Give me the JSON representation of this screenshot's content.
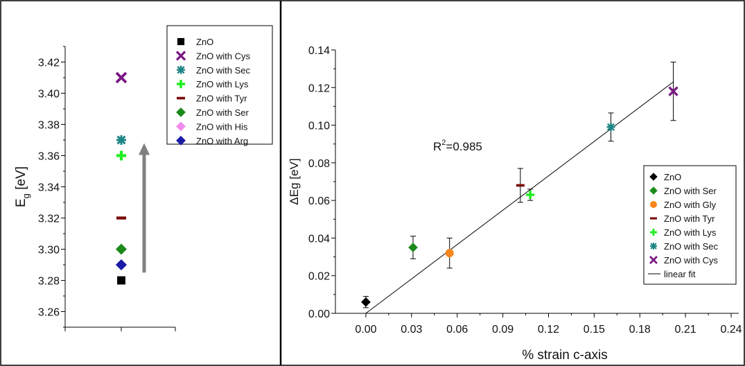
{
  "chart_data": [
    {
      "type": "scatter",
      "ylabel_main": "E",
      "ylabel_sub": "g",
      "ylabel_unit": "[eV]",
      "ylim": [
        3.25,
        3.43
      ],
      "yticks": [
        3.26,
        3.28,
        3.3,
        3.32,
        3.34,
        3.36,
        3.38,
        3.4,
        3.42
      ],
      "ytick_labels": [
        "3.26",
        "3.28",
        "3.30",
        "3.32",
        "3.34",
        "3.36",
        "3.38",
        "3.40",
        "3.42"
      ],
      "arrow": {
        "from": 3.285,
        "to": 3.368,
        "color": "#808080"
      },
      "legend_position": "top-right",
      "series": [
        {
          "name": "ZnO",
          "marker": "square",
          "color": "#000000",
          "y": 3.28
        },
        {
          "name": "ZnO with Cys",
          "marker": "x",
          "color": "#7b1a84",
          "y": 3.41
        },
        {
          "name": "ZnO with Sec",
          "marker": "asterisk",
          "color": "#1f8585",
          "y": 3.37
        },
        {
          "name": "ZnO with Lys",
          "marker": "plus",
          "color": "#22ee22",
          "y": 3.36
        },
        {
          "name": "ZnO with Tyr",
          "marker": "dash",
          "color": "#7d0a0a",
          "y": 3.32
        },
        {
          "name": "ZnO with Ser",
          "marker": "diamond",
          "color": "#1b8a1b",
          "y": 3.3
        },
        {
          "name": "ZnO with His",
          "marker": "diamond",
          "color": "#f08cf0",
          "y": null
        },
        {
          "name": "ZnO with Arg",
          "marker": "diamond",
          "color": "#1a1aa8",
          "y": 3.29
        }
      ]
    },
    {
      "type": "scatter",
      "xlabel": "% strain c-axis",
      "ylabel": "ΔEg [eV]",
      "xlim": [
        -0.02,
        0.245
      ],
      "ylim": [
        0.0,
        0.14
      ],
      "xticks": [
        0.0,
        0.03,
        0.06,
        0.09,
        0.12,
        0.15,
        0.18,
        0.21,
        0.24
      ],
      "xtick_labels": [
        "0.00",
        "0.03",
        "0.06",
        "0.09",
        "0.12",
        "0.15",
        "0.18",
        "0.21",
        "0.24"
      ],
      "yticks": [
        0.0,
        0.02,
        0.04,
        0.06,
        0.08,
        0.1,
        0.12,
        0.14
      ],
      "ytick_labels": [
        "0.00",
        "0.02",
        "0.04",
        "0.06",
        "0.08",
        "0.10",
        "0.12",
        "0.14"
      ],
      "annotation": {
        "prefix": "R",
        "sup": "2",
        "suffix": "=0.985"
      },
      "legend_position": "right",
      "series": [
        {
          "name": "ZnO",
          "marker": "diamond",
          "color": "#000000",
          "x": 0.0,
          "y": 0.006,
          "err": 0.003
        },
        {
          "name": "ZnO with Ser",
          "marker": "diamond",
          "color": "#1b8a1b",
          "x": 0.031,
          "y": 0.035,
          "err": 0.006
        },
        {
          "name": "ZnO with Gly",
          "marker": "circle",
          "color": "#f7861c",
          "x": 0.055,
          "y": 0.032,
          "err": 0.008
        },
        {
          "name": "ZnO with Tyr",
          "marker": "dash",
          "color": "#7d0a0a",
          "x": 0.1015,
          "y": 0.068,
          "err": 0.009
        },
        {
          "name": "ZnO with Lys",
          "marker": "plus",
          "color": "#22ee22",
          "x": 0.108,
          "y": 0.063,
          "err": 0.003
        },
        {
          "name": "ZnO with Sec",
          "marker": "asterisk",
          "color": "#1f8585",
          "x": 0.161,
          "y": 0.099,
          "err": 0.0075
        },
        {
          "name": "ZnO with Cys",
          "marker": "x",
          "color": "#7b1a84",
          "x": 0.202,
          "y": 0.118,
          "err": 0.0155
        }
      ],
      "fit": {
        "name": "linear fit",
        "x": [
          0.0,
          0.202
        ],
        "y": [
          0.0,
          0.123
        ],
        "color": "#000000"
      }
    }
  ]
}
